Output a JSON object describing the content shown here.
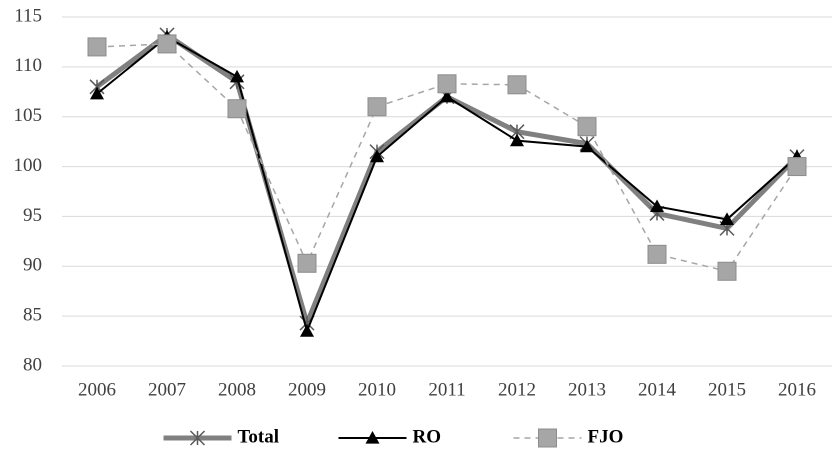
{
  "chart_data": {
    "type": "line",
    "categories": [
      "2006",
      "2007",
      "2008",
      "2009",
      "2010",
      "2011",
      "2012",
      "2013",
      "2014",
      "2015",
      "2016"
    ],
    "series": [
      {
        "name": "Total",
        "color": "#808080",
        "marker": "asterisk",
        "line_style": "solid",
        "values": [
          108,
          113.2,
          108.5,
          84.3,
          101.5,
          107,
          103.5,
          102.3,
          95.3,
          93.8,
          101
        ]
      },
      {
        "name": "RO",
        "color": "#000000",
        "marker": "triangle",
        "line_style": "solid",
        "values": [
          107.3,
          113,
          109,
          83.5,
          101,
          107,
          102.6,
          102,
          96,
          94.7,
          101
        ]
      },
      {
        "name": "FJO",
        "color": "#a6a6a6",
        "marker": "square",
        "line_style": "dashed",
        "values": [
          112,
          112.3,
          105.8,
          90.3,
          106,
          108.3,
          108.2,
          104,
          91.2,
          89.5,
          100
        ]
      }
    ],
    "ylim": [
      80,
      115
    ],
    "yticks": [
      80,
      85,
      90,
      95,
      100,
      105,
      110,
      115
    ],
    "grid": true,
    "legend": "bottom"
  }
}
